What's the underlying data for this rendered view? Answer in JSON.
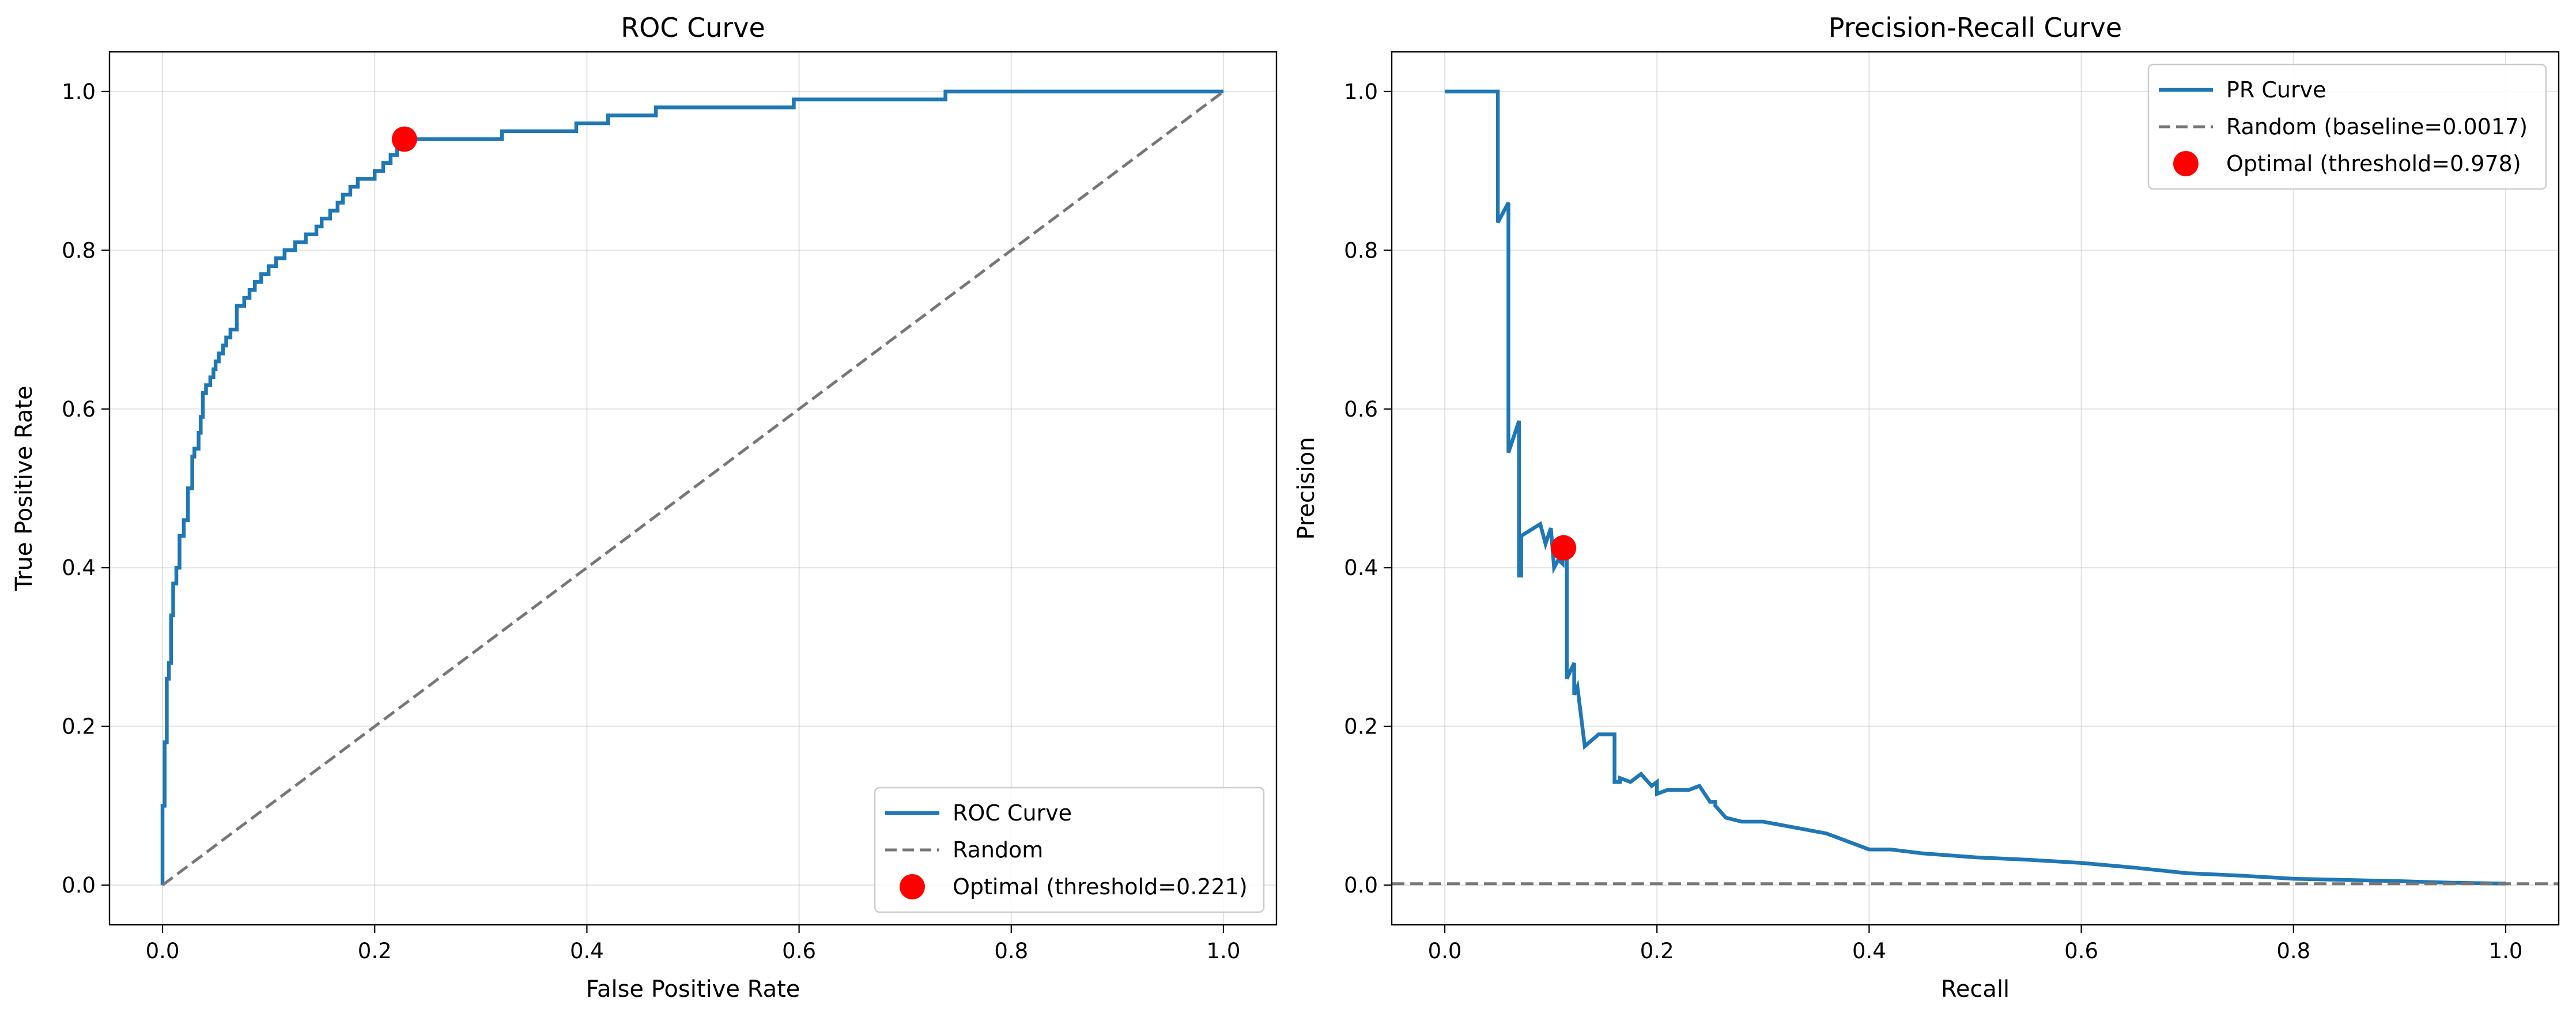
{
  "chart_data": [
    {
      "type": "line",
      "title": "ROC Curve",
      "xlabel": "False Positive Rate",
      "ylabel": "True Positive Rate",
      "xlim": [
        -0.05,
        1.05
      ],
      "ylim": [
        -0.05,
        1.05
      ],
      "xticks": [
        "0.0",
        "0.2",
        "0.4",
        "0.6",
        "0.8",
        "1.0"
      ],
      "yticks": [
        "0.0",
        "0.2",
        "0.4",
        "0.6",
        "0.8",
        "1.0"
      ],
      "grid": true,
      "legend_position": "lower right",
      "series": [
        {
          "name": "ROC Curve",
          "color": "#1f77b4",
          "style": "solid",
          "x": [
            0,
            0,
            0.002,
            0.002,
            0.004,
            0.004,
            0.006,
            0.006,
            0.008,
            0.008,
            0.01,
            0.01,
            0.013,
            0.013,
            0.016,
            0.016,
            0.02,
            0.02,
            0.024,
            0.024,
            0.028,
            0.028,
            0.03,
            0.03,
            0.034,
            0.034,
            0.036,
            0.036,
            0.038,
            0.038,
            0.041,
            0.041,
            0.045,
            0.045,
            0.048,
            0.048,
            0.05,
            0.05,
            0.053,
            0.053,
            0.057,
            0.057,
            0.06,
            0.06,
            0.064,
            0.064,
            0.07,
            0.07,
            0.077,
            0.077,
            0.082,
            0.082,
            0.087,
            0.087,
            0.093,
            0.093,
            0.1,
            0.1,
            0.107,
            0.107,
            0.115,
            0.115,
            0.125,
            0.125,
            0.135,
            0.135,
            0.145,
            0.145,
            0.15,
            0.15,
            0.158,
            0.158,
            0.165,
            0.165,
            0.17,
            0.17,
            0.177,
            0.177,
            0.184,
            0.184,
            0.2,
            0.2,
            0.208,
            0.208,
            0.215,
            0.215,
            0.221,
            0.221,
            0.228,
            0.228,
            0.235,
            0.235,
            0.32,
            0.32,
            0.39,
            0.39,
            0.42,
            0.42,
            0.465,
            0.465,
            0.595,
            0.595,
            0.738,
            0.738,
            1.0
          ],
          "y": [
            0,
            0.1,
            0.1,
            0.18,
            0.18,
            0.26,
            0.26,
            0.28,
            0.28,
            0.34,
            0.34,
            0.38,
            0.38,
            0.4,
            0.4,
            0.44,
            0.44,
            0.46,
            0.46,
            0.5,
            0.5,
            0.54,
            0.54,
            0.55,
            0.55,
            0.57,
            0.57,
            0.59,
            0.59,
            0.62,
            0.62,
            0.63,
            0.63,
            0.64,
            0.64,
            0.65,
            0.65,
            0.66,
            0.66,
            0.67,
            0.67,
            0.68,
            0.68,
            0.69,
            0.69,
            0.7,
            0.7,
            0.73,
            0.73,
            0.74,
            0.74,
            0.75,
            0.75,
            0.76,
            0.76,
            0.77,
            0.77,
            0.78,
            0.78,
            0.79,
            0.79,
            0.8,
            0.8,
            0.81,
            0.81,
            0.82,
            0.82,
            0.83,
            0.83,
            0.84,
            0.84,
            0.85,
            0.85,
            0.86,
            0.86,
            0.87,
            0.87,
            0.88,
            0.88,
            0.89,
            0.89,
            0.9,
            0.9,
            0.91,
            0.91,
            0.92,
            0.92,
            0.93,
            0.93,
            0.935,
            0.935,
            0.94,
            0.94,
            0.95,
            0.95,
            0.96,
            0.96,
            0.97,
            0.97,
            0.98,
            0.98,
            0.99,
            0.99,
            1.0,
            1.0
          ]
        },
        {
          "name": "Random",
          "color": "#777777",
          "style": "dashed",
          "x": [
            0,
            1
          ],
          "y": [
            0,
            1
          ]
        }
      ],
      "points": [
        {
          "name": "Optimal (threshold=0.221)",
          "color": "#ff0000",
          "x": 0.228,
          "y": 0.94
        }
      ]
    },
    {
      "type": "line",
      "title": "Precision-Recall Curve",
      "xlabel": "Recall",
      "ylabel": "Precision",
      "xlim": [
        -0.05,
        1.05
      ],
      "ylim": [
        -0.05,
        1.05
      ],
      "xticks": [
        "0.0",
        "0.2",
        "0.4",
        "0.6",
        "0.8",
        "1.0"
      ],
      "yticks": [
        "0.0",
        "0.2",
        "0.4",
        "0.6",
        "0.8",
        "1.0"
      ],
      "grid": true,
      "legend_position": "upper right",
      "series": [
        {
          "name": "PR Curve",
          "color": "#1f77b4",
          "style": "solid",
          "x": [
            0,
            0.05,
            0.05,
            0.06,
            0.06,
            0.07,
            0.07,
            0.072,
            0.072,
            0.09,
            0.095,
            0.1,
            0.103,
            0.107,
            0.111,
            0.111,
            0.115,
            0.115,
            0.122,
            0.122,
            0.125,
            0.125,
            0.132,
            0.132,
            0.145,
            0.145,
            0.16,
            0.16,
            0.165,
            0.165,
            0.175,
            0.185,
            0.195,
            0.2,
            0.2,
            0.21,
            0.23,
            0.24,
            0.25,
            0.255,
            0.255,
            0.265,
            0.265,
            0.28,
            0.3,
            0.32,
            0.34,
            0.36,
            0.38,
            0.4,
            0.42,
            0.45,
            0.5,
            0.55,
            0.6,
            0.65,
            0.7,
            0.75,
            0.8,
            0.9,
            0.95,
            1.0
          ],
          "y": [
            1.0,
            1.0,
            0.835,
            0.86,
            0.545,
            0.585,
            0.39,
            0.39,
            0.44,
            0.455,
            0.43,
            0.45,
            0.4,
            0.41,
            0.405,
            0.42,
            0.415,
            0.26,
            0.28,
            0.24,
            0.25,
            0.25,
            0.175,
            0.175,
            0.19,
            0.19,
            0.19,
            0.13,
            0.13,
            0.135,
            0.13,
            0.14,
            0.125,
            0.13,
            0.115,
            0.12,
            0.12,
            0.125,
            0.105,
            0.105,
            0.1,
            0.085,
            0.085,
            0.08,
            0.08,
            0.075,
            0.07,
            0.065,
            0.055,
            0.045,
            0.045,
            0.04,
            0.035,
            0.032,
            0.028,
            0.022,
            0.015,
            0.012,
            0.008,
            0.005,
            0.003,
            0.002
          ]
        },
        {
          "name": "Random (baseline=0.0017)",
          "color": "#777777",
          "style": "dashed",
          "x": [
            -0.05,
            1.05
          ],
          "y": [
            0.0017,
            0.0017
          ]
        }
      ],
      "points": [
        {
          "name": "Optimal (threshold=0.978)",
          "color": "#ff0000",
          "x": 0.112,
          "y": 0.425
        }
      ]
    }
  ]
}
